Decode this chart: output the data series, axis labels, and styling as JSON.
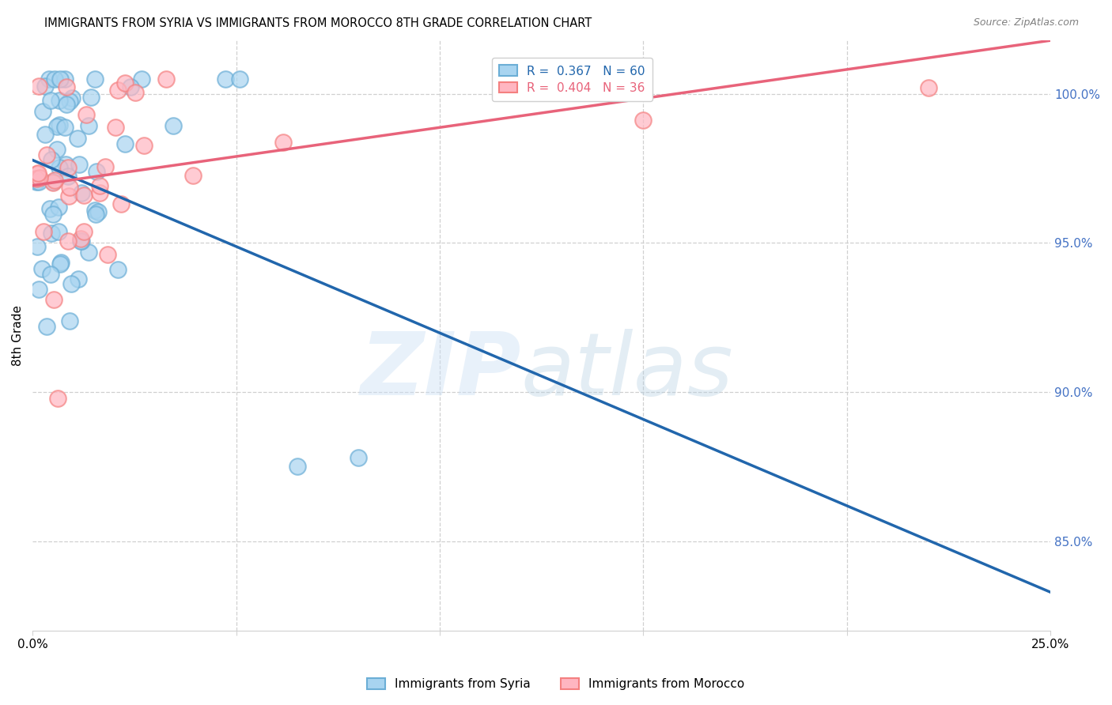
{
  "title": "IMMIGRANTS FROM SYRIA VS IMMIGRANTS FROM MOROCCO 8TH GRADE CORRELATION CHART",
  "source": "Source: ZipAtlas.com",
  "ylabel": "8th Grade",
  "xlim": [
    0.0,
    0.25
  ],
  "ylim": [
    0.82,
    1.018
  ],
  "syria_color_face": "#a8d4f0",
  "syria_color_edge": "#6baed6",
  "morocco_color_face": "#ffb6c1",
  "morocco_color_edge": "#f48080",
  "trendline_syria_color": "#2166ac",
  "trendline_morocco_color": "#e8637a",
  "legend_syria_text": "R =  0.367   N = 60",
  "legend_morocco_text": "R =  0.404   N = 36",
  "legend_syria_color": "#2166ac",
  "legend_morocco_color": "#e8637a",
  "bottom_legend_syria": "Immigrants from Syria",
  "bottom_legend_morocco": "Immigrants from Morocco",
  "watermark_zip": "ZIP",
  "watermark_atlas": "atlas",
  "grid_color": "#d0d0d0",
  "ytick_color": "#4472c4",
  "ytick_labels": [
    "85.0%",
    "90.0%",
    "95.0%",
    "100.0%"
  ],
  "ytick_vals": [
    0.85,
    0.9,
    0.95,
    1.0
  ],
  "syria_R": 0.367,
  "morocco_R": 0.404,
  "syria_N": 60,
  "morocco_N": 36
}
